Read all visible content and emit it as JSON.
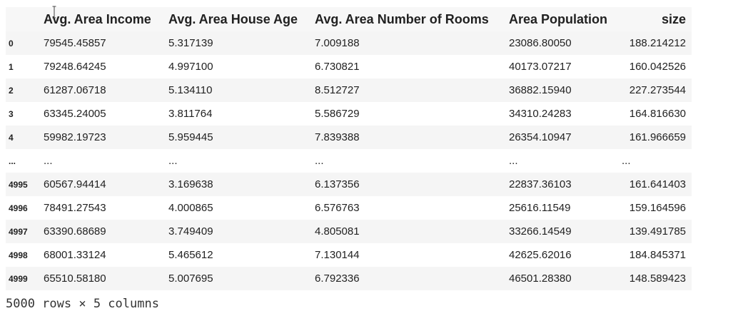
{
  "table": {
    "columns": [
      "",
      "Avg. Area Income",
      "Avg. Area House Age",
      "Avg. Area Number of Rooms",
      "Area Population",
      "size"
    ],
    "rows": [
      [
        "0",
        "79545.45857",
        "5.317139",
        "7.009188",
        "23086.80050",
        "188.214212"
      ],
      [
        "1",
        "79248.64245",
        "4.997100",
        "6.730821",
        "40173.07217",
        "160.042526"
      ],
      [
        "2",
        "61287.06718",
        "5.134110",
        "8.512727",
        "36882.15940",
        "227.273544"
      ],
      [
        "3",
        "63345.24005",
        "3.811764",
        "5.586729",
        "34310.24283",
        "164.816630"
      ],
      [
        "4",
        "59982.19723",
        "5.959445",
        "7.839388",
        "26354.10947",
        "161.966659"
      ],
      [
        "...",
        "...",
        "...",
        "...",
        "...",
        "..."
      ],
      [
        "4995",
        "60567.94414",
        "3.169638",
        "6.137356",
        "22837.36103",
        "161.641403"
      ],
      [
        "4996",
        "78491.27543",
        "4.000865",
        "6.576763",
        "25616.11549",
        "159.164596"
      ],
      [
        "4997",
        "63390.68689",
        "3.749409",
        "4.805081",
        "33266.14549",
        "139.491785"
      ],
      [
        "4998",
        "68001.33124",
        "5.465612",
        "7.130144",
        "42625.62016",
        "184.845371"
      ],
      [
        "4999",
        "65510.58180",
        "5.007695",
        "6.792336",
        "46501.28380",
        "148.589423"
      ]
    ]
  },
  "shape_caption": "5000 rows × 5 columns"
}
